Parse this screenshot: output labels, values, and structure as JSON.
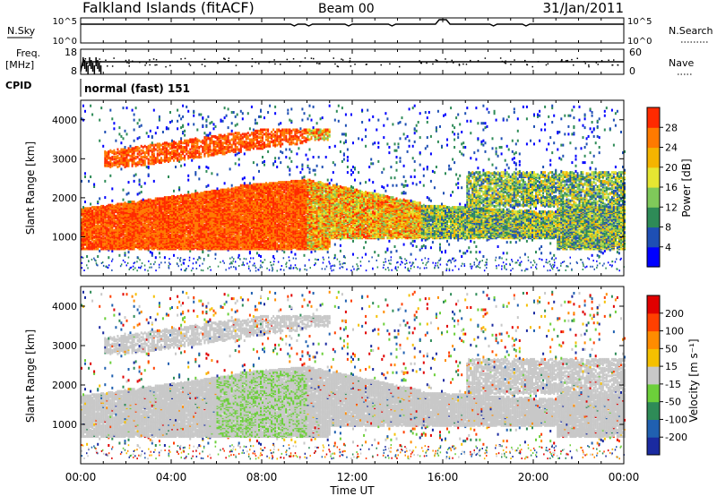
{
  "header": {
    "station": "Falkland Islands (fitACF)",
    "beam": "Beam 00",
    "date": "31/Jan/2011"
  },
  "top_panels": {
    "nsky_label": "N.Sky",
    "nsearch_label": "N.Search",
    "nsky_ticks": [
      "10^5",
      "10^0"
    ],
    "nsearch_ticks": [
      "10^5",
      "10^0"
    ],
    "freq_label_line1": "Freq.",
    "freq_label_line2": "[MHz]",
    "freq_ticks": [
      "18",
      "8"
    ],
    "nave_label": "Nave",
    "nave_ticks": [
      "60",
      "0"
    ],
    "cpid_label": "CPID",
    "cpid_value": "normal (fast) 151"
  },
  "chart_data": [
    {
      "type": "heatmap",
      "name": "power",
      "ylabel": "Slant Range [km]",
      "ylim": [
        0,
        4500
      ],
      "yticks": [
        "1000",
        "2000",
        "3000",
        "4000"
      ],
      "xlim_hours": [
        0,
        24
      ],
      "colorbar_label": "Power [dB]",
      "colorbar_ticks": [
        "4",
        "8",
        "12",
        "16",
        "20",
        "24",
        "28"
      ],
      "colorbar_colors": [
        "#0000ff",
        "#1e4fb4",
        "#2e8b57",
        "#7fc95a",
        "#e6e632",
        "#f5b400",
        "#ff7a00",
        "#ff2a00"
      ]
    },
    {
      "type": "heatmap",
      "name": "velocity",
      "ylabel": "Slant Range [km]",
      "ylim": [
        0,
        4500
      ],
      "yticks": [
        "1000",
        "2000",
        "3000",
        "4000"
      ],
      "xlim_hours": [
        0,
        24
      ],
      "xticks": [
        "00:00",
        "04:00",
        "08:00",
        "12:00",
        "16:00",
        "20:00",
        "00:00"
      ],
      "xlabel": "Time UT",
      "colorbar_label": "Velocity [m s⁻¹]",
      "colorbar_ticks": [
        "200",
        "100",
        "50",
        "15",
        "-15",
        "-50",
        "-100",
        "-200"
      ],
      "colorbar_colors": [
        "#1a2aa0",
        "#2060b0",
        "#2e8b57",
        "#6ccf3a",
        "#c8c8c8",
        "#f5c000",
        "#ff8c00",
        "#ff4000",
        "#e00000"
      ]
    }
  ]
}
